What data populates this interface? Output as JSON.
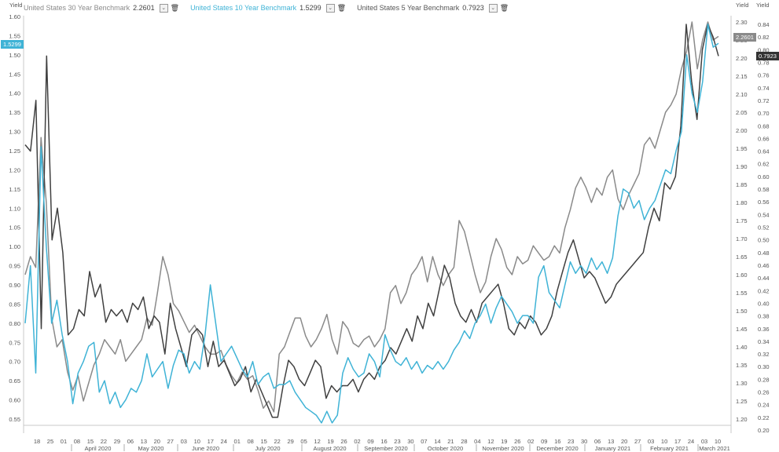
{
  "legend": [
    {
      "name": "United States 30 Year Benchmark",
      "value": "2.2601",
      "color": "#8a8a8a"
    },
    {
      "name": "United States 10 Year Benchmark",
      "value": "1.5299",
      "color": "#3fb3d6"
    },
    {
      "name": "United States 5 Year Benchmark",
      "value": "0.7923",
      "color": "#404040"
    }
  ],
  "axes": {
    "left_title": "Yield",
    "right_title": "Yield",
    "right2_title": "Yield"
  },
  "flags": {
    "left": "1.5299",
    "right_top": "2.2601",
    "right_bottom": "0.7923"
  },
  "chart_data": {
    "type": "line",
    "x_day_labels": [
      "18",
      "25",
      "01",
      "08",
      "15",
      "22",
      "29",
      "06",
      "13",
      "20",
      "27",
      "03",
      "10",
      "17",
      "24",
      "01",
      "08",
      "15",
      "22",
      "29",
      "05",
      "12",
      "19",
      "26",
      "02",
      "09",
      "16",
      "23",
      "30",
      "07",
      "14",
      "21",
      "28",
      "04",
      "12",
      "19",
      "26",
      "02",
      "09",
      "16",
      "23",
      "30",
      "06",
      "13",
      "20",
      "27",
      "03",
      "10",
      "17",
      "24",
      "03",
      "10"
    ],
    "x_month_labels": [
      "April 2020",
      "May 2020",
      "June 2020",
      "July 2020",
      "August 2020",
      "September 2020",
      "October 2020",
      "November 2020",
      "December 2020",
      "January 2021",
      "February 2021",
      "March 2021"
    ],
    "y_left": {
      "ticks": [
        "0.55",
        "0.60",
        "0.65",
        "0.70",
        "0.75",
        "0.80",
        "0.85",
        "0.90",
        "0.95",
        "1.00",
        "1.05",
        "1.10",
        "1.15",
        "1.20",
        "1.25",
        "1.30",
        "1.35",
        "1.40",
        "1.45",
        "1.50",
        "1.55",
        "1.60"
      ],
      "min": 0.55,
      "max": 1.6
    },
    "y_right_30y": {
      "ticks": [
        "1.20",
        "1.25",
        "1.30",
        "1.35",
        "1.40",
        "1.45",
        "1.50",
        "1.55",
        "1.60",
        "1.65",
        "1.70",
        "1.75",
        "1.80",
        "1.85",
        "1.90",
        "1.95",
        "2.00",
        "2.05",
        "2.10",
        "2.15",
        "2.20",
        "2.25",
        "2.30"
      ],
      "min": 1.2,
      "max": 2.3
    },
    "y_right_5y": {
      "ticks": [
        "0.20",
        "0.22",
        "0.24",
        "0.26",
        "0.28",
        "0.30",
        "0.32",
        "0.34",
        "0.36",
        "0.38",
        "0.40",
        "0.42",
        "0.44",
        "0.46",
        "0.48",
        "0.50",
        "0.52",
        "0.54",
        "0.56",
        "0.58",
        "0.60",
        "0.62",
        "0.64",
        "0.66",
        "0.68",
        "0.70",
        "0.72",
        "0.74",
        "0.76",
        "0.78",
        "0.80",
        "0.82",
        "0.84"
      ],
      "min": 0.2,
      "max": 0.84
    },
    "series": [
      {
        "name": "United States 30 Year Benchmark",
        "axis": "30y",
        "y": [
          1.6,
          1.65,
          1.62,
          1.98,
          1.8,
          1.48,
          1.4,
          1.42,
          1.33,
          1.28,
          1.32,
          1.25,
          1.3,
          1.35,
          1.38,
          1.42,
          1.4,
          1.38,
          1.42,
          1.36,
          1.38,
          1.4,
          1.42,
          1.48,
          1.46,
          1.55,
          1.65,
          1.6,
          1.52,
          1.5,
          1.47,
          1.44,
          1.46,
          1.43,
          1.4,
          1.38,
          1.38,
          1.39,
          1.35,
          1.32,
          1.3,
          1.33,
          1.31,
          1.32,
          1.28,
          1.23,
          1.25,
          1.22,
          1.38,
          1.4,
          1.44,
          1.48,
          1.48,
          1.43,
          1.4,
          1.42,
          1.45,
          1.49,
          1.42,
          1.38,
          1.47,
          1.45,
          1.41,
          1.4,
          1.42,
          1.43,
          1.4,
          1.42,
          1.45,
          1.55,
          1.57,
          1.52,
          1.55,
          1.6,
          1.62,
          1.65,
          1.58,
          1.65,
          1.6,
          1.57,
          1.6,
          1.62,
          1.75,
          1.72,
          1.66,
          1.6,
          1.55,
          1.58,
          1.65,
          1.7,
          1.67,
          1.62,
          1.6,
          1.65,
          1.63,
          1.64,
          1.68,
          1.66,
          1.64,
          1.65,
          1.68,
          1.66,
          1.73,
          1.78,
          1.84,
          1.87,
          1.84,
          1.8,
          1.84,
          1.82,
          1.87,
          1.89,
          1.81,
          1.78,
          1.82,
          1.85,
          1.88,
          1.96,
          1.98,
          1.95,
          2.0,
          2.05,
          2.07,
          2.1,
          2.17,
          2.22,
          2.3,
          2.17,
          2.25,
          2.3,
          2.25,
          2.26
        ]
      },
      {
        "name": "United States 10 Year Benchmark",
        "axis": "left",
        "y": [
          0.8,
          0.95,
          0.67,
          1.26,
          1.0,
          0.8,
          0.86,
          0.77,
          0.7,
          0.59,
          0.67,
          0.7,
          0.74,
          0.75,
          0.62,
          0.65,
          0.59,
          0.62,
          0.58,
          0.6,
          0.63,
          0.62,
          0.65,
          0.72,
          0.66,
          0.68,
          0.7,
          0.63,
          0.69,
          0.73,
          0.72,
          0.67,
          0.7,
          0.68,
          0.77,
          0.9,
          0.8,
          0.7,
          0.72,
          0.74,
          0.71,
          0.68,
          0.66,
          0.7,
          0.64,
          0.66,
          0.67,
          0.63,
          0.64,
          0.64,
          0.65,
          0.62,
          0.6,
          0.58,
          0.57,
          0.56,
          0.54,
          0.57,
          0.54,
          0.56,
          0.67,
          0.71,
          0.68,
          0.66,
          0.67,
          0.72,
          0.7,
          0.66,
          0.77,
          0.73,
          0.7,
          0.69,
          0.71,
          0.68,
          0.7,
          0.67,
          0.69,
          0.68,
          0.7,
          0.68,
          0.7,
          0.73,
          0.75,
          0.78,
          0.76,
          0.8,
          0.82,
          0.85,
          0.8,
          0.84,
          0.87,
          0.85,
          0.83,
          0.8,
          0.82,
          0.82,
          0.8,
          0.92,
          0.95,
          0.88,
          0.86,
          0.84,
          0.9,
          0.96,
          0.93,
          0.95,
          0.93,
          0.97,
          0.94,
          0.96,
          0.93,
          0.97,
          1.08,
          1.15,
          1.14,
          1.1,
          1.12,
          1.07,
          1.1,
          1.12,
          1.16,
          1.2,
          1.19,
          1.25,
          1.3,
          1.5,
          1.4,
          1.35,
          1.43,
          1.58,
          1.52,
          1.53
        ]
      },
      {
        "name": "United States 5 Year Benchmark",
        "axis": "5y",
        "y": [
          0.65,
          0.64,
          0.72,
          0.36,
          0.79,
          0.5,
          0.55,
          0.48,
          0.35,
          0.36,
          0.39,
          0.38,
          0.45,
          0.41,
          0.43,
          0.37,
          0.39,
          0.38,
          0.39,
          0.37,
          0.4,
          0.39,
          0.41,
          0.36,
          0.38,
          0.37,
          0.32,
          0.4,
          0.36,
          0.33,
          0.3,
          0.35,
          0.36,
          0.35,
          0.3,
          0.34,
          0.3,
          0.31,
          0.29,
          0.27,
          0.28,
          0.3,
          0.26,
          0.28,
          0.26,
          0.24,
          0.22,
          0.22,
          0.27,
          0.31,
          0.3,
          0.28,
          0.27,
          0.29,
          0.31,
          0.3,
          0.25,
          0.27,
          0.26,
          0.27,
          0.27,
          0.28,
          0.26,
          0.28,
          0.29,
          0.28,
          0.3,
          0.31,
          0.33,
          0.32,
          0.34,
          0.36,
          0.34,
          0.38,
          0.36,
          0.4,
          0.38,
          0.42,
          0.46,
          0.44,
          0.4,
          0.38,
          0.37,
          0.39,
          0.37,
          0.4,
          0.41,
          0.42,
          0.43,
          0.4,
          0.36,
          0.35,
          0.37,
          0.36,
          0.38,
          0.37,
          0.35,
          0.36,
          0.38,
          0.42,
          0.45,
          0.48,
          0.5,
          0.47,
          0.44,
          0.45,
          0.44,
          0.42,
          0.4,
          0.41,
          0.43,
          0.44,
          0.45,
          0.46,
          0.47,
          0.48,
          0.52,
          0.55,
          0.53,
          0.59,
          0.58,
          0.6,
          0.68,
          0.84,
          0.75,
          0.69,
          0.8,
          0.84,
          0.82,
          0.79
        ]
      }
    ],
    "grid": false,
    "legend_position": "top-left"
  }
}
